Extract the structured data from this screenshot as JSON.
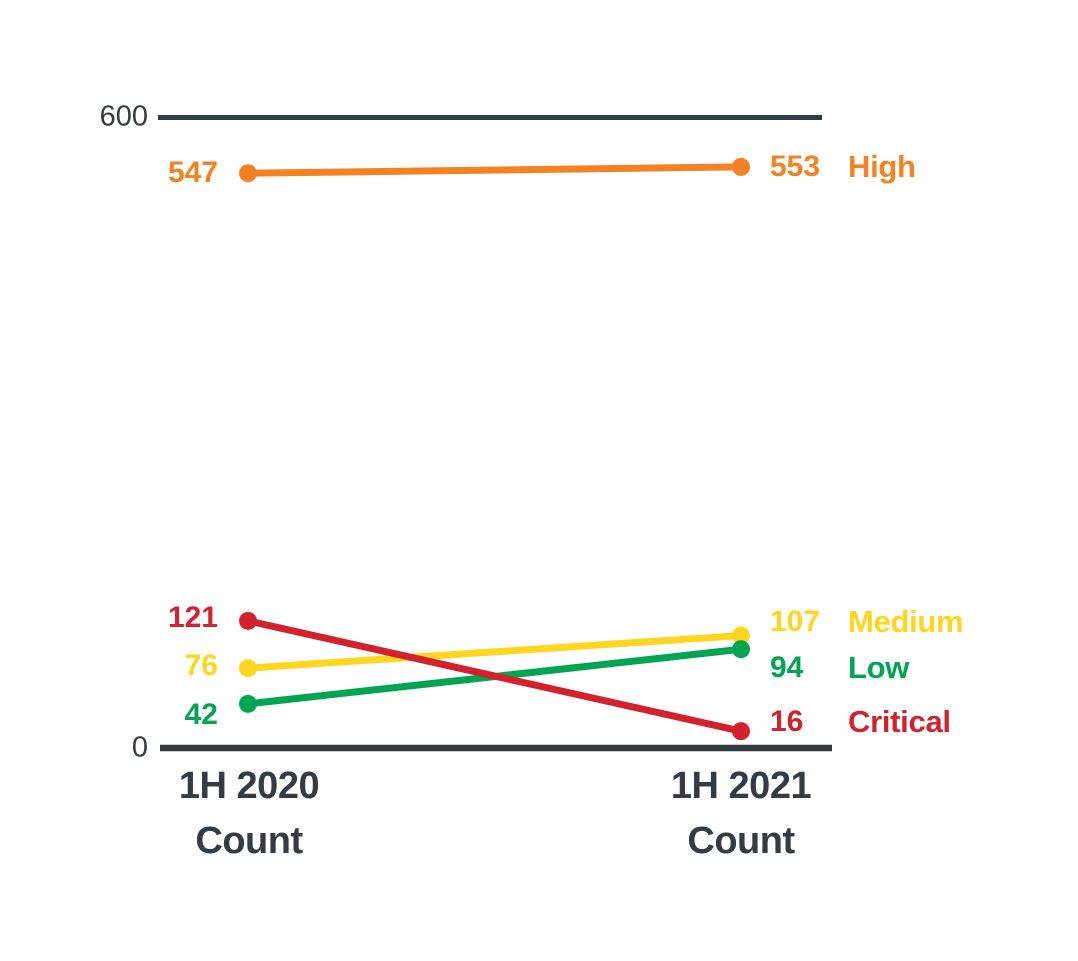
{
  "chart_data": {
    "type": "line",
    "subtype": "slopegraph",
    "x_categories": [
      {
        "label": "1H 2020",
        "sublabel": "Count"
      },
      {
        "label": "1H 2021",
        "sublabel": "Count"
      }
    ],
    "y_ticks": [
      {
        "value": 600,
        "label": "600"
      },
      {
        "value": 0,
        "label": "0"
      }
    ],
    "ylim": [
      0,
      600
    ],
    "grid": false,
    "legend_position": "right",
    "axis_color": "#333C44",
    "series": [
      {
        "name": "High",
        "color": "#F58220",
        "values": [
          547,
          553
        ]
      },
      {
        "name": "Medium",
        "color": "#FFD51E",
        "values": [
          76,
          107
        ]
      },
      {
        "name": "Low",
        "color": "#00A551",
        "values": [
          42,
          94
        ]
      },
      {
        "name": "Critical",
        "color": "#D4222C",
        "values": [
          121,
          16
        ]
      }
    ]
  }
}
